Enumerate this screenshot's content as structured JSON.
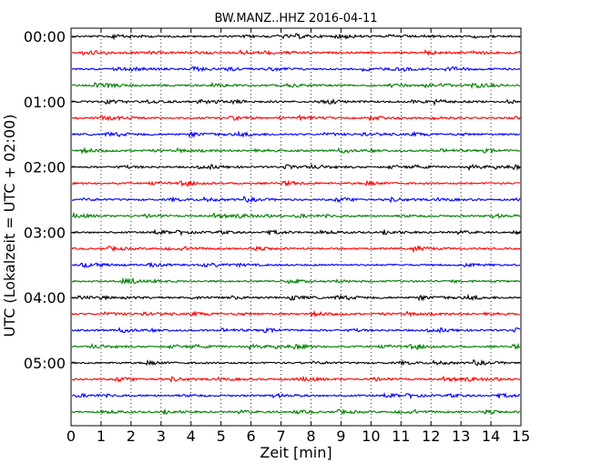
{
  "chart_data": {
    "type": "line",
    "title": "BW.MANZ..HHZ 2016-04-11",
    "xlabel": "Zeit  [min]",
    "ylabel": "UTC (Lokalzeit = UTC + 02:00)",
    "xlim": [
      0,
      15
    ],
    "x_ticks": [
      "0",
      "1",
      "2",
      "3",
      "4",
      "5",
      "6",
      "7",
      "8",
      "9",
      "10",
      "11",
      "12",
      "13",
      "14",
      "15"
    ],
    "y_ticks": [
      "00:00",
      "01:00",
      "02:00",
      "03:00",
      "04:00",
      "05:00"
    ],
    "grid": "vertical dotted at each minute",
    "trace_count": 24,
    "trace_interval_minutes": 15,
    "colors": [
      "#000000",
      "#ff0000",
      "#0000ff",
      "#008000"
    ]
  }
}
